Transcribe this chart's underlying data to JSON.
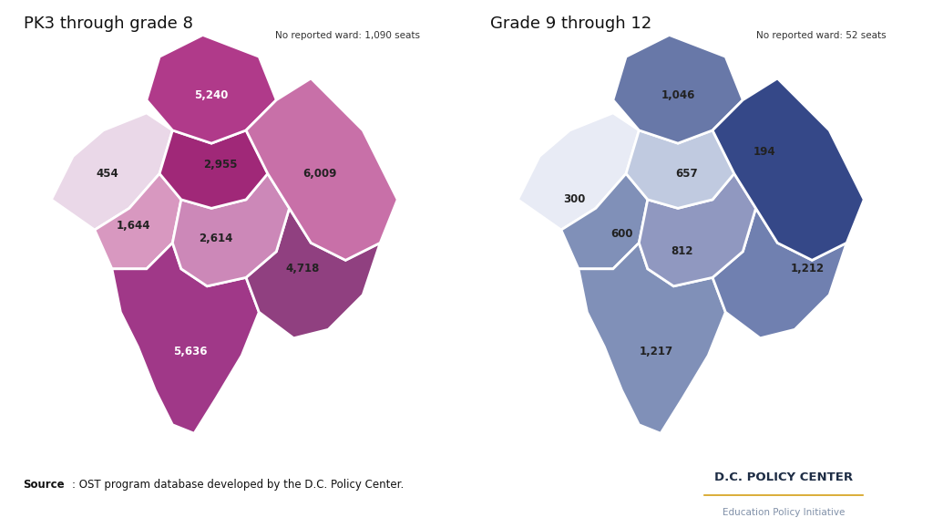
{
  "left_title": "PK3 through grade 8",
  "right_title": "Grade 9 through 12",
  "left_no_ward": "No reported ward: 1,090 seats",
  "right_no_ward": "No reported ward: 52 seats",
  "source_bold": "Source",
  "source_rest": ": OST program database developed by the D.C. Policy Center.",
  "logo_line1": "D.C. POLICY CENTER",
  "logo_line2": "Education Policy Initiative",
  "logo_line_color": "#D4A017",
  "left_colors": {
    "ward1": "#B03A8A",
    "ward2": "#C870A8",
    "ward3": "#EAD8E8",
    "ward4": "#A02878",
    "ward5": "#D898C0",
    "ward6": "#CC88B8",
    "ward7": "#904080",
    "ward8": "#A03888"
  },
  "right_colors": {
    "ward1": "#6878A8",
    "ward2": "#354888",
    "ward3": "#E8EBF5",
    "ward4": "#C0CAE0",
    "ward5": "#8090B8",
    "ward6": "#9098C0",
    "ward7": "#7080B0",
    "ward8": "#8090B8"
  },
  "left_labels": {
    "ward1": "5,240",
    "ward2": "6,009",
    "ward3": "454",
    "ward4": "2,955",
    "ward5": "1,644",
    "ward6": "2,614",
    "ward7": "4,718",
    "ward8": "5,636"
  },
  "right_labels": {
    "ward1": "1,046",
    "ward2": "1,212",
    "ward3": "194",
    "ward4": "300",
    "ward5": "657",
    "ward6": "600",
    "ward7": "812",
    "ward8": "1,217"
  },
  "left_label_colors": {
    "ward1": "#FFFFFF",
    "ward2": "#222222",
    "ward3": "#222222",
    "ward4": "#222222",
    "ward5": "#222222",
    "ward6": "#222222",
    "ward7": "#222222",
    "ward8": "#FFFFFF"
  },
  "right_label_colors": {
    "ward1": "#222222",
    "ward2": "#222222",
    "ward3": "#222222",
    "ward4": "#222222",
    "ward5": "#222222",
    "ward6": "#222222",
    "ward7": "#222222",
    "ward8": "#222222"
  }
}
